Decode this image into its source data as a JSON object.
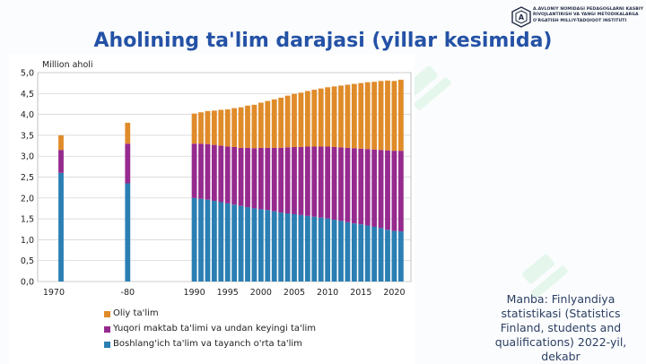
{
  "header": {
    "title": "Aholining ta'lim darajasi (yillar kesimida)",
    "logo_lines": [
      "A.AVLONIY NOMIDAGI PEDAGOGLARNI KASBIY",
      "RIVOJLANTIRISH VA YANGI METODIKALARGA",
      "O'RGATISH MILLIY-TADQIQOT INSTITUTI"
    ]
  },
  "source_text": "Manba: Finlyandiya statistikasi (Statistics Finland, students and qualifications) 2022-yil, dekabr",
  "legend": [
    {
      "label": "Oliy ta'lim",
      "color": "#e08b2a"
    },
    {
      "label": "Yuqori maktab ta'limi va undan keyingi ta'lim",
      "color": "#962a8e"
    },
    {
      "label": "Boshlang'ich ta'lim va tayanch o'rta ta'lim",
      "color": "#2a7fb3"
    }
  ],
  "chart_data": {
    "type": "bar",
    "stacked": true,
    "ylabel": "Million aholi",
    "ylim": [
      0,
      5
    ],
    "yticks": [
      "0,0",
      "0,5",
      "1,0",
      "1,5",
      "2,0",
      "2,5",
      "3,0",
      "3,5",
      "4,0",
      "4,5",
      "5,0"
    ],
    "xtick_labels": [
      "1970",
      "-80",
      "1990",
      "1995",
      "2000",
      "2005",
      "2010",
      "2015",
      "2020"
    ],
    "grid": true,
    "categories": [
      1970,
      1980,
      1990,
      1991,
      1992,
      1993,
      1994,
      1995,
      1996,
      1997,
      1998,
      1999,
      2000,
      2001,
      2002,
      2003,
      2004,
      2005,
      2006,
      2007,
      2008,
      2009,
      2010,
      2011,
      2012,
      2013,
      2014,
      2015,
      2016,
      2017,
      2018,
      2019,
      2020,
      2021
    ],
    "series": [
      {
        "name": "Boshlang'ich ta'lim va tayanch o'rta ta'lim",
        "color": "#2a7fb3",
        "values": [
          2.6,
          2.35,
          2.0,
          1.98,
          1.96,
          1.93,
          1.9,
          1.87,
          1.84,
          1.81,
          1.78,
          1.75,
          1.73,
          1.71,
          1.68,
          1.65,
          1.63,
          1.61,
          1.59,
          1.57,
          1.55,
          1.53,
          1.51,
          1.48,
          1.45,
          1.42,
          1.39,
          1.37,
          1.34,
          1.31,
          1.28,
          1.24,
          1.21,
          1.2
        ]
      },
      {
        "name": "Yuqori maktab ta'limi va undan keyingi ta'lim",
        "color": "#962a8e",
        "values": [
          0.55,
          0.95,
          1.3,
          1.32,
          1.33,
          1.34,
          1.35,
          1.36,
          1.38,
          1.39,
          1.42,
          1.44,
          1.47,
          1.49,
          1.52,
          1.55,
          1.58,
          1.61,
          1.63,
          1.66,
          1.68,
          1.7,
          1.72,
          1.74,
          1.76,
          1.78,
          1.8,
          1.81,
          1.83,
          1.85,
          1.87,
          1.9,
          1.92,
          1.93
        ]
      },
      {
        "name": "Oliy ta'lim",
        "color": "#e08b2a",
        "values": [
          0.35,
          0.5,
          0.72,
          0.75,
          0.79,
          0.82,
          0.86,
          0.89,
          0.93,
          0.97,
          1.01,
          1.04,
          1.08,
          1.12,
          1.16,
          1.2,
          1.24,
          1.27,
          1.3,
          1.33,
          1.36,
          1.39,
          1.42,
          1.45,
          1.48,
          1.51,
          1.54,
          1.57,
          1.6,
          1.62,
          1.65,
          1.67,
          1.67,
          1.7
        ]
      }
    ]
  }
}
